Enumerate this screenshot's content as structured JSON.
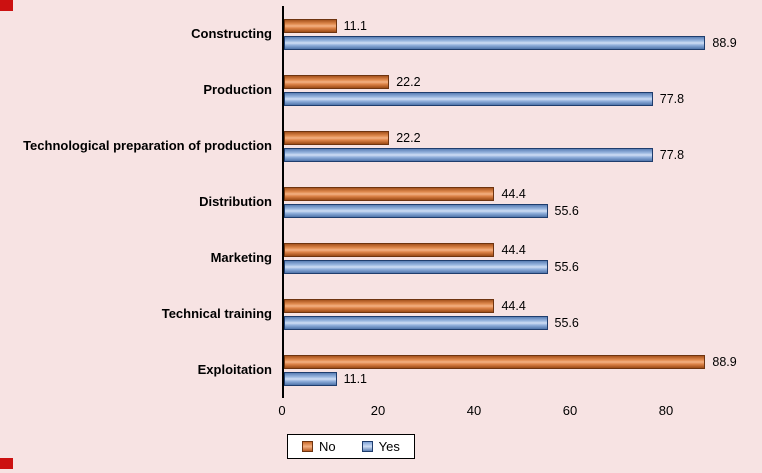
{
  "colors": {
    "background": "#f7e3e3",
    "no_series": "#e07a39",
    "no_border": "#6e3410",
    "yes_series": "#95b3d7",
    "yes_border": "#1f3d6d",
    "axis": "#000000",
    "corner_marker": "#cc1111",
    "legend_background": "#ffffff"
  },
  "chart_data": {
    "type": "bar",
    "orientation": "horizontal",
    "title": "",
    "xlabel": "",
    "ylabel": "",
    "categories": [
      "Constructing",
      "Production",
      "Technological preparation of production",
      "Distribution",
      "Marketing",
      "Technical training",
      "Exploitation"
    ],
    "series": [
      {
        "name": "No",
        "color": "#e07a39",
        "values": [
          11.1,
          22.2,
          22.2,
          44.4,
          44.4,
          44.4,
          88.9
        ]
      },
      {
        "name": "Yes",
        "color": "#95b3d7",
        "values": [
          88.9,
          77.8,
          77.8,
          55.6,
          55.6,
          55.6,
          11.1
        ]
      }
    ],
    "value_labels": [
      [
        "11.1",
        "22.2",
        "22.2",
        "44.4",
        "44.4",
        "44.4",
        "88.9"
      ],
      [
        "88.9",
        "77.8",
        "77.8",
        "55.6",
        "55.6",
        "55.6",
        "11.1"
      ]
    ],
    "xlim": [
      0,
      100
    ],
    "xticks": [
      "0",
      "20",
      "40",
      "60",
      "80"
    ],
    "grid": false,
    "legend_position": "bottom"
  },
  "legend": {
    "no_label": "No",
    "yes_label": "Yes"
  }
}
